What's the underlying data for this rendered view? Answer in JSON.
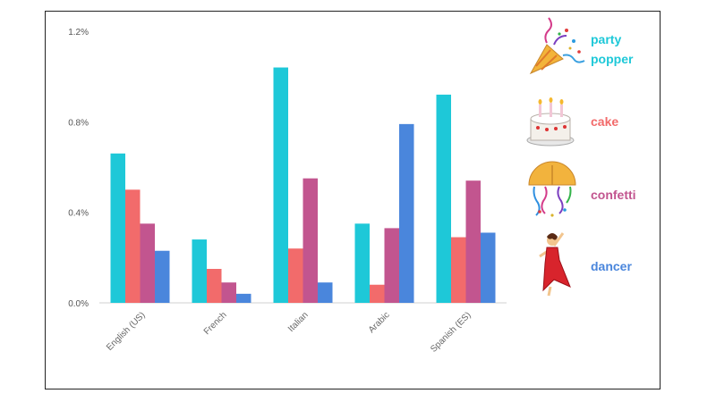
{
  "chart_data": {
    "type": "bar",
    "title": "",
    "xlabel": "",
    "ylabel": "",
    "ylim": [
      0,
      1.2
    ],
    "yticks": [
      "0.0%",
      "0.4%",
      "0.8%",
      "1.2%"
    ],
    "ytick_values": [
      0,
      0.4,
      0.8,
      1.2
    ],
    "categories": [
      "English (US)",
      "French",
      "Italian",
      "Arabic",
      "Spanish (ES)"
    ],
    "grid": false,
    "legend_position": "right",
    "series": [
      {
        "name": "party popper",
        "icon": "party-popper-icon",
        "color": "#1ec8d8",
        "values": [
          0.66,
          0.28,
          1.04,
          0.35,
          0.92
        ]
      },
      {
        "name": "cake",
        "icon": "birthday-cake-icon",
        "color": "#f26b6b",
        "values": [
          0.5,
          0.15,
          0.24,
          0.08,
          0.29
        ]
      },
      {
        "name": "confetti",
        "icon": "confetti-ball-icon",
        "color": "#c2558f",
        "values": [
          0.35,
          0.09,
          0.55,
          0.33,
          0.54
        ]
      },
      {
        "name": "dancer",
        "icon": "dancer-icon",
        "color": "#4a86dc",
        "values": [
          0.23,
          0.04,
          0.09,
          0.79,
          0.31
        ]
      }
    ]
  }
}
